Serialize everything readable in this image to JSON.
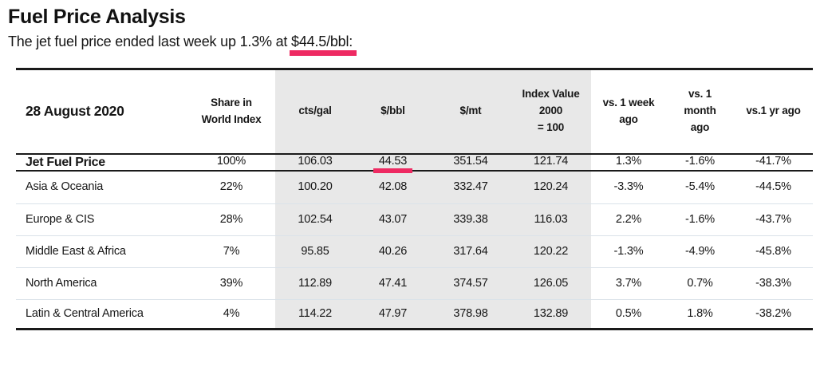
{
  "page": {
    "title": "Fuel Price Analysis",
    "subtitle_prefix": "The jet fuel price ended last week up 1.3% at ",
    "subtitle_highlight": "$44.5/bbl:"
  },
  "colors": {
    "accent_pink": "#ee2a62",
    "column_band_gray": "#e8e8e8",
    "text": "#161616",
    "row_divider": "#dae2e9",
    "rule_black": "#1a1a1a"
  },
  "table": {
    "headers": [
      "28 August 2020",
      "Share in\nWorld Index",
      "cts/gal",
      "$/bbl",
      "$/mt",
      "Index Value\n2000\n= 100",
      "vs. 1 week\nago",
      "vs. 1\nmonth\nago",
      "vs.1 yr ago"
    ],
    "rows": [
      {
        "label": "Jet Fuel Price",
        "values": [
          "100%",
          "106.03",
          "44.53",
          "351.54",
          "121.74",
          "1.3%",
          "-1.6%",
          "-41.7%"
        ]
      },
      {
        "label": "Asia & Oceania",
        "values": [
          "22%",
          "100.20",
          "42.08",
          "332.47",
          "120.24",
          "-3.3%",
          "-5.4%",
          "-44.5%"
        ]
      },
      {
        "label": "Europe & CIS",
        "values": [
          "28%",
          "102.54",
          "43.07",
          "339.38",
          "116.03",
          "2.2%",
          "-1.6%",
          "-43.7%"
        ]
      },
      {
        "label": "Middle East & Africa",
        "values": [
          "7%",
          "95.85",
          "40.26",
          "317.64",
          "120.22",
          "-1.3%",
          "-4.9%",
          "-45.8%"
        ]
      },
      {
        "label": "North America",
        "values": [
          "39%",
          "112.89",
          "47.41",
          "374.57",
          "126.05",
          "3.7%",
          "0.7%",
          "-38.3%"
        ]
      },
      {
        "label": "Latin & Central America",
        "values": [
          "4%",
          "114.22",
          "47.97",
          "378.98",
          "132.89",
          "0.5%",
          "1.8%",
          "-38.2%"
        ]
      }
    ]
  }
}
